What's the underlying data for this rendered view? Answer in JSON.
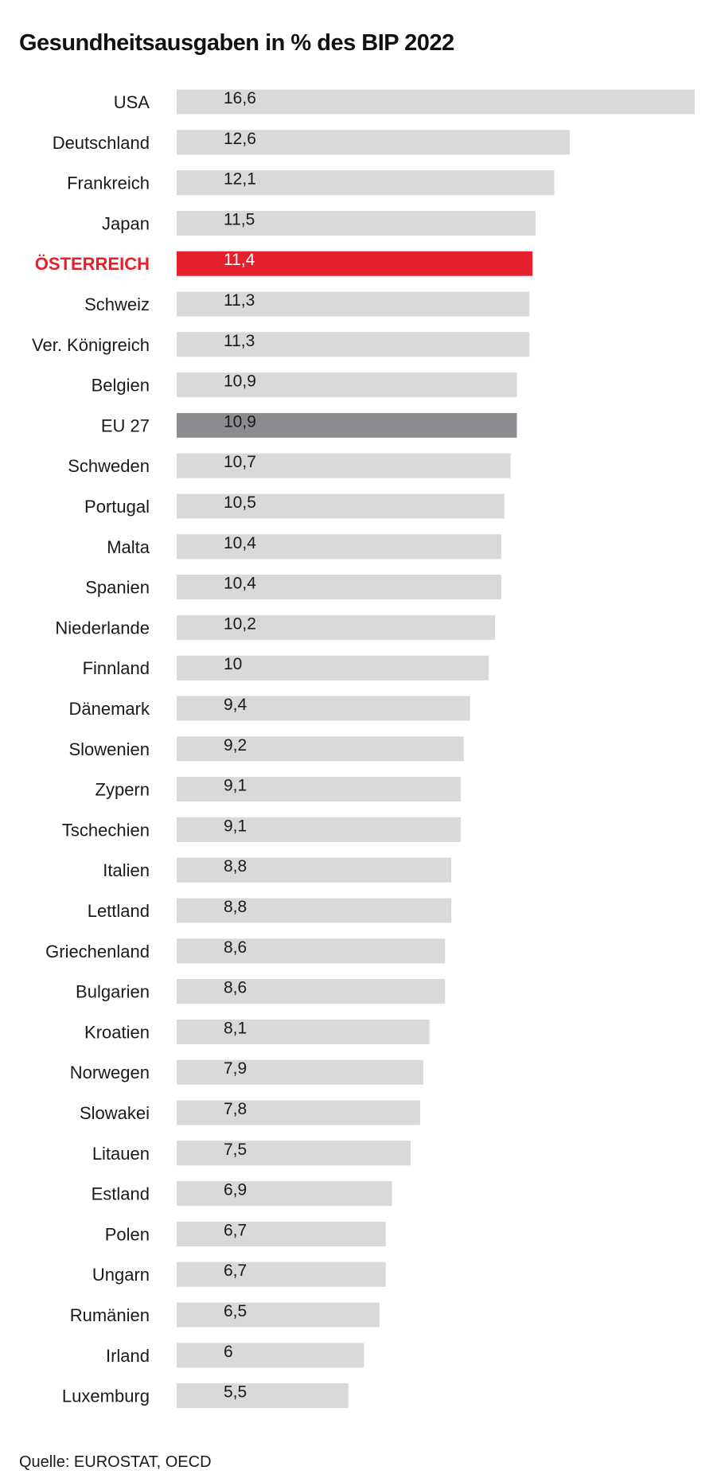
{
  "title": "Gesundheitsausgaben in % des BIP 2022",
  "source": "Quelle: EUROSTAT, OECD",
  "colors": {
    "default_bar": "#d8d9db",
    "highlight_bar": "#e3202b",
    "reference_bar": "#8b8c8f",
    "highlight_label": "#e3202b",
    "text": "#1a1a1a"
  },
  "chart_data": {
    "type": "bar",
    "orientation": "horizontal",
    "title": "Gesundheitsausgaben in % des BIP 2022",
    "xlabel": "",
    "ylabel": "",
    "grid": false,
    "categories": [
      "USA",
      "Deutschland",
      "Frankreich",
      "Japan",
      "ÖSTERREICH",
      "Schweiz",
      "Ver. Königreich",
      "Belgien",
      "EU 27",
      "Schweden",
      "Portugal",
      "Malta",
      "Spanien",
      "Niederlande",
      "Finnland",
      "Dänemark",
      "Slowenien",
      "Zypern",
      "Tschechien",
      "Italien",
      "Lettland",
      "Griechenland",
      "Bulgarien",
      "Kroatien",
      "Norwegen",
      "Slowakei",
      "Litauen",
      "Estland",
      "Polen",
      "Ungarn",
      "Rumänien",
      "Irland",
      "Luxemburg"
    ],
    "values": [
      16.6,
      12.6,
      12.1,
      11.5,
      11.4,
      11.3,
      11.3,
      10.9,
      10.9,
      10.7,
      10.5,
      10.4,
      10.4,
      10.2,
      10,
      9.4,
      9.2,
      9.1,
      9.1,
      8.8,
      8.8,
      8.6,
      8.6,
      8.1,
      7.9,
      7.8,
      7.5,
      6.9,
      6.7,
      6.7,
      6.5,
      6,
      5.5
    ],
    "value_labels": [
      "16,6",
      "12,6",
      "12,1",
      "11,5",
      "11,4",
      "11,3",
      "11,3",
      "10,9",
      "10,9",
      "10,7",
      "10,5",
      "10,4",
      "10,4",
      "10,2",
      "10",
      "9,4",
      "9,2",
      "9,1",
      "9,1",
      "8,8",
      "8,8",
      "8,6",
      "8,6",
      "8,1",
      "7,9",
      "7,8",
      "7,5",
      "6,9",
      "6,7",
      "6,7",
      "6,5",
      "6",
      "5,5"
    ],
    "highlight": "ÖSTERREICH",
    "reference": "EU 27",
    "xlim": [
      0,
      16.6
    ]
  }
}
